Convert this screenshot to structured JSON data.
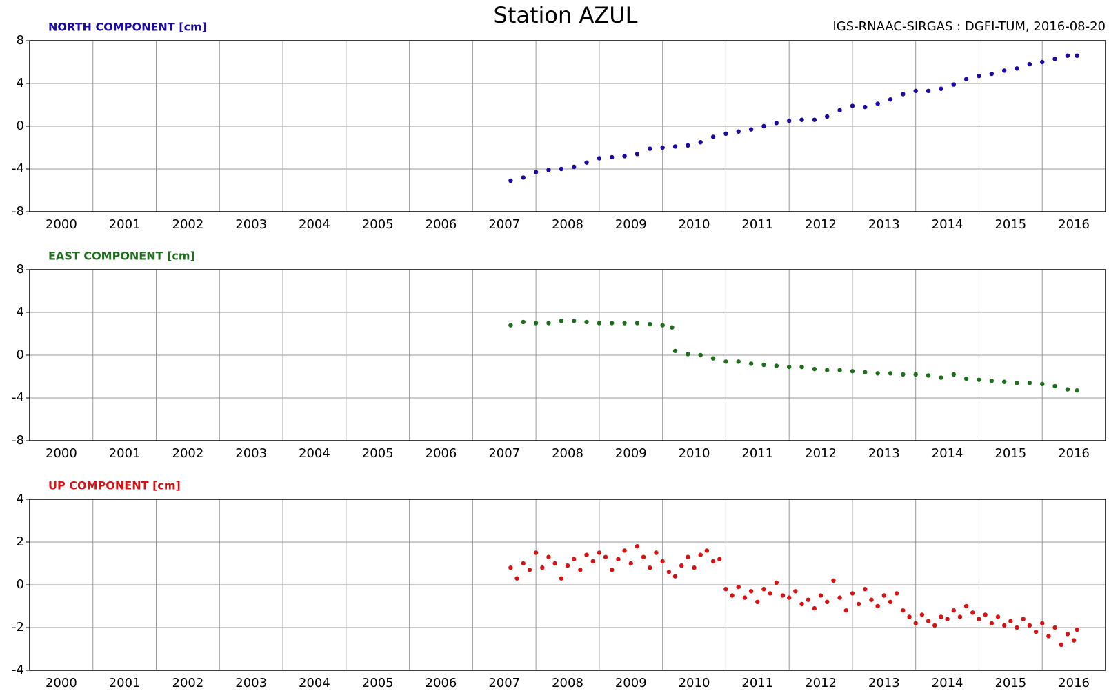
{
  "title": "Station AZUL",
  "source": "IGS-RNAAC-SIRGAS : DGFI-TUM, 2016-08-20",
  "chart_data": [
    {
      "type": "scatter",
      "label": "NORTH COMPONENT [cm]",
      "color": "#1a0aa0",
      "x": [
        2007.6,
        2007.8,
        2008.0,
        2008.2,
        2008.4,
        2008.6,
        2008.8,
        2009.0,
        2009.2,
        2009.4,
        2009.6,
        2009.8,
        2010.0,
        2010.2,
        2010.4,
        2010.6,
        2010.8,
        2011.0,
        2011.2,
        2011.4,
        2011.6,
        2011.8,
        2012.0,
        2012.2,
        2012.4,
        2012.6,
        2012.8,
        2013.0,
        2013.2,
        2013.4,
        2013.6,
        2013.8,
        2014.0,
        2014.2,
        2014.4,
        2014.6,
        2014.8,
        2015.0,
        2015.2,
        2015.4,
        2015.6,
        2015.8,
        2016.0,
        2016.2,
        2016.4,
        2016.55
      ],
      "values": [
        -5.1,
        -4.8,
        -4.3,
        -4.1,
        -4.0,
        -3.8,
        -3.4,
        -3.0,
        -2.9,
        -2.8,
        -2.6,
        -2.1,
        -2.0,
        -1.9,
        -1.8,
        -1.5,
        -1.0,
        -0.7,
        -0.5,
        -0.3,
        0.0,
        0.3,
        0.5,
        0.6,
        0.6,
        0.9,
        1.5,
        1.9,
        1.8,
        2.1,
        2.5,
        3.0,
        3.3,
        3.3,
        3.5,
        3.9,
        4.4,
        4.7,
        4.9,
        5.2,
        5.4,
        5.8,
        6.0,
        6.3,
        6.6,
        6.6
      ],
      "xlim": [
        2000,
        2017
      ],
      "ylim": [
        -8,
        8
      ],
      "yticks": [
        -8,
        -4,
        0,
        4,
        8
      ],
      "xticks": [
        {
          "value": 2000.5,
          "label": "2000"
        },
        {
          "value": 2001.5,
          "label": "2001"
        },
        {
          "value": 2002.5,
          "label": "2002"
        },
        {
          "value": 2003.5,
          "label": "2003"
        },
        {
          "value": 2004.5,
          "label": "2004"
        },
        {
          "value": 2005.5,
          "label": "2005"
        },
        {
          "value": 2006.5,
          "label": "2006"
        },
        {
          "value": 2007.5,
          "label": "2007"
        },
        {
          "value": 2008.5,
          "label": "2008"
        },
        {
          "value": 2009.5,
          "label": "2009"
        },
        {
          "value": 2010.5,
          "label": "2010"
        },
        {
          "value": 2011.5,
          "label": "2011"
        },
        {
          "value": 2012.5,
          "label": "2012"
        },
        {
          "value": 2013.5,
          "label": "2013"
        },
        {
          "value": 2014.5,
          "label": "2014"
        },
        {
          "value": 2015.5,
          "label": "2015"
        },
        {
          "value": 2016.5,
          "label": "2016"
        }
      ],
      "xgrid": [
        2001,
        2002,
        2003,
        2004,
        2005,
        2006,
        2007,
        2008,
        2009,
        2010,
        2011,
        2012,
        2013,
        2014,
        2015,
        2016
      ],
      "grid": true
    },
    {
      "type": "scatter",
      "label": "EAST COMPONENT [cm]",
      "color": "#1e6e1e",
      "x": [
        2007.6,
        2007.8,
        2008.0,
        2008.2,
        2008.4,
        2008.6,
        2008.8,
        2009.0,
        2009.2,
        2009.4,
        2009.6,
        2009.8,
        2010.0,
        2010.15,
        2010.2,
        2010.4,
        2010.6,
        2010.8,
        2011.0,
        2011.2,
        2011.4,
        2011.6,
        2011.8,
        2012.0,
        2012.2,
        2012.4,
        2012.6,
        2012.8,
        2013.0,
        2013.2,
        2013.4,
        2013.6,
        2013.8,
        2014.0,
        2014.2,
        2014.4,
        2014.6,
        2014.8,
        2015.0,
        2015.2,
        2015.4,
        2015.6,
        2015.8,
        2016.0,
        2016.2,
        2016.4,
        2016.55
      ],
      "values": [
        2.8,
        3.1,
        3.0,
        3.0,
        3.2,
        3.2,
        3.1,
        3.0,
        3.0,
        3.0,
        3.0,
        2.9,
        2.8,
        2.6,
        0.4,
        0.1,
        0.0,
        -0.3,
        -0.6,
        -0.6,
        -0.8,
        -0.9,
        -1.0,
        -1.1,
        -1.1,
        -1.3,
        -1.4,
        -1.4,
        -1.5,
        -1.6,
        -1.7,
        -1.7,
        -1.8,
        -1.8,
        -1.9,
        -2.1,
        -1.8,
        -2.2,
        -2.3,
        -2.4,
        -2.5,
        -2.6,
        -2.6,
        -2.7,
        -2.9,
        -3.2,
        -3.3
      ],
      "xlim": [
        2000,
        2017
      ],
      "ylim": [
        -8,
        8
      ],
      "yticks": [
        -8,
        -4,
        0,
        4,
        8
      ],
      "xticks": [
        {
          "value": 2000.5,
          "label": "2000"
        },
        {
          "value": 2001.5,
          "label": "2001"
        },
        {
          "value": 2002.5,
          "label": "2002"
        },
        {
          "value": 2003.5,
          "label": "2003"
        },
        {
          "value": 2004.5,
          "label": "2004"
        },
        {
          "value": 2005.5,
          "label": "2005"
        },
        {
          "value": 2006.5,
          "label": "2006"
        },
        {
          "value": 2007.5,
          "label": "2007"
        },
        {
          "value": 2008.5,
          "label": "2008"
        },
        {
          "value": 2009.5,
          "label": "2009"
        },
        {
          "value": 2010.5,
          "label": "2010"
        },
        {
          "value": 2011.5,
          "label": "2011"
        },
        {
          "value": 2012.5,
          "label": "2012"
        },
        {
          "value": 2013.5,
          "label": "2013"
        },
        {
          "value": 2014.5,
          "label": "2014"
        },
        {
          "value": 2015.5,
          "label": "2015"
        },
        {
          "value": 2016.5,
          "label": "2016"
        }
      ],
      "xgrid": [
        2001,
        2002,
        2003,
        2004,
        2005,
        2006,
        2007,
        2008,
        2009,
        2010,
        2011,
        2012,
        2013,
        2014,
        2015,
        2016
      ],
      "grid": true
    },
    {
      "type": "scatter",
      "label": "UP COMPONENT [cm]",
      "color": "#d41414",
      "x": [
        2007.6,
        2007.7,
        2007.8,
        2007.9,
        2008.0,
        2008.1,
        2008.2,
        2008.3,
        2008.4,
        2008.5,
        2008.6,
        2008.7,
        2008.8,
        2008.9,
        2009.0,
        2009.1,
        2009.2,
        2009.3,
        2009.4,
        2009.5,
        2009.6,
        2009.7,
        2009.8,
        2009.9,
        2010.0,
        2010.1,
        2010.2,
        2010.3,
        2010.4,
        2010.5,
        2010.6,
        2010.7,
        2010.8,
        2010.9,
        2011.0,
        2011.1,
        2011.2,
        2011.3,
        2011.4,
        2011.5,
        2011.6,
        2011.7,
        2011.8,
        2011.9,
        2012.0,
        2012.1,
        2012.2,
        2012.3,
        2012.4,
        2012.5,
        2012.6,
        2012.7,
        2012.8,
        2012.9,
        2013.0,
        2013.1,
        2013.2,
        2013.3,
        2013.4,
        2013.5,
        2013.6,
        2013.7,
        2013.8,
        2013.9,
        2014.0,
        2014.1,
        2014.2,
        2014.3,
        2014.4,
        2014.5,
        2014.6,
        2014.7,
        2014.8,
        2014.9,
        2015.0,
        2015.1,
        2015.2,
        2015.3,
        2015.4,
        2015.5,
        2015.6,
        2015.7,
        2015.8,
        2015.9,
        2016.0,
        2016.1,
        2016.2,
        2016.3,
        2016.4,
        2016.5,
        2016.55
      ],
      "values": [
        0.8,
        0.3,
        1.0,
        0.7,
        1.5,
        0.8,
        1.3,
        1.0,
        0.3,
        0.9,
        1.2,
        0.7,
        1.4,
        1.1,
        1.5,
        1.3,
        0.7,
        1.2,
        1.6,
        1.0,
        1.8,
        1.3,
        0.8,
        1.5,
        1.1,
        0.6,
        0.4,
        0.9,
        1.3,
        0.8,
        1.4,
        1.6,
        1.1,
        1.2,
        -0.2,
        -0.5,
        -0.1,
        -0.6,
        -0.3,
        -0.8,
        -0.2,
        -0.4,
        0.1,
        -0.5,
        -0.6,
        -0.3,
        -0.9,
        -0.7,
        -1.1,
        -0.5,
        -0.8,
        0.2,
        -0.6,
        -1.2,
        -0.4,
        -0.9,
        -0.2,
        -0.7,
        -1.0,
        -0.5,
        -0.8,
        -0.4,
        -1.2,
        -1.5,
        -1.8,
        -1.4,
        -1.7,
        -1.9,
        -1.5,
        -1.6,
        -1.2,
        -1.5,
        -1.0,
        -1.3,
        -1.6,
        -1.4,
        -1.8,
        -1.5,
        -1.9,
        -1.7,
        -2.0,
        -1.6,
        -1.9,
        -2.2,
        -1.8,
        -2.4,
        -2.0,
        -2.8,
        -2.3,
        -2.6,
        -2.1
      ],
      "xlim": [
        2000,
        2017
      ],
      "ylim": [
        -4,
        4
      ],
      "yticks": [
        -4,
        -2,
        0,
        2,
        4
      ],
      "xticks": [
        {
          "value": 2000.5,
          "label": "2000"
        },
        {
          "value": 2001.5,
          "label": "2001"
        },
        {
          "value": 2002.5,
          "label": "2002"
        },
        {
          "value": 2003.5,
          "label": "2003"
        },
        {
          "value": 2004.5,
          "label": "2004"
        },
        {
          "value": 2005.5,
          "label": "2005"
        },
        {
          "value": 2006.5,
          "label": "2006"
        },
        {
          "value": 2007.5,
          "label": "2007"
        },
        {
          "value": 2008.5,
          "label": "2008"
        },
        {
          "value": 2009.5,
          "label": "2009"
        },
        {
          "value": 2010.5,
          "label": "2010"
        },
        {
          "value": 2011.5,
          "label": "2011"
        },
        {
          "value": 2012.5,
          "label": "2012"
        },
        {
          "value": 2013.5,
          "label": "2013"
        },
        {
          "value": 2014.5,
          "label": "2014"
        },
        {
          "value": 2015.5,
          "label": "2015"
        },
        {
          "value": 2016.5,
          "label": "2016"
        }
      ],
      "xgrid": [
        2001,
        2002,
        2003,
        2004,
        2005,
        2006,
        2007,
        2008,
        2009,
        2010,
        2011,
        2012,
        2013,
        2014,
        2015,
        2016
      ],
      "grid": true
    }
  ]
}
